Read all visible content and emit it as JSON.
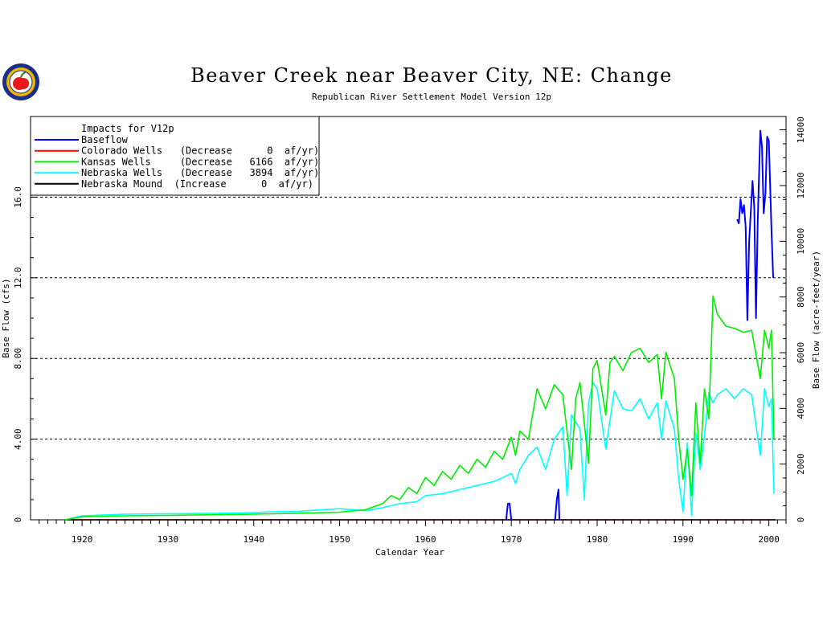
{
  "chart_data": {
    "type": "line",
    "title": "Beaver Creek near Beaver City, NE: Change",
    "subtitle": "Republican River Settlement Model Version 12p",
    "xlabel": "Calendar Year",
    "ylabel": "Base Flow (cfs)",
    "ylabel_right": "Base Flow (acre-feet/year)",
    "xlim": [
      1914,
      2002
    ],
    "ylim": [
      0,
      20
    ],
    "ylim_right": [
      0,
      14480
    ],
    "x_ticks": [
      1920,
      1930,
      1940,
      1950,
      1960,
      1970,
      1980,
      1990,
      2000
    ],
    "y_ticks": [
      0,
      4,
      8,
      12,
      16
    ],
    "y_tick_labels": [
      "0",
      "4.00",
      "8.00",
      "12.0",
      "16.0"
    ],
    "y_ticks_right": [
      0,
      2000,
      4000,
      6000,
      8000,
      10000,
      12000,
      14000
    ],
    "gridlines": "horizontal dashed at left y ticks",
    "legend": {
      "placement": "top-left",
      "header": "Impacts for V12p",
      "entries": [
        {
          "label": "Baseflow",
          "color": "#0000ff"
        },
        {
          "label": "Colorado Wells   (Decrease      0  af/yr)",
          "color": "#ff0000"
        },
        {
          "label": "Kansas Wells     (Decrease   6166  af/yr)",
          "color": "#00ee00"
        },
        {
          "label": "Nebraska Wells   (Decrease   3894  af/yr)",
          "color": "#00ffff"
        },
        {
          "label": "Nebraska Mound  (Increase      0  af/yr)",
          "color": "#000000"
        }
      ]
    },
    "series": [
      {
        "name": "Baseflow",
        "color": "#0000ff",
        "segments": [
          [
            [
              1969.4,
              0.0
            ],
            [
              1969.6,
              0.8
            ],
            [
              1969.8,
              0.8
            ],
            [
              1970.0,
              0.0
            ]
          ],
          [
            [
              1975.1,
              0.0
            ],
            [
              1975.3,
              1.0
            ],
            [
              1975.5,
              1.5
            ],
            [
              1975.6,
              0.0
            ]
          ],
          [
            [
              1996.3,
              14.9
            ],
            [
              1996.5,
              14.7
            ],
            [
              1996.7,
              15.9
            ],
            [
              1996.9,
              15.2
            ],
            [
              1997.1,
              15.6
            ],
            [
              1997.3,
              14.5
            ],
            [
              1997.5,
              9.9
            ],
            [
              1997.7,
              13.8
            ],
            [
              1997.9,
              15.3
            ],
            [
              1998.1,
              16.8
            ],
            [
              1998.3,
              15.5
            ],
            [
              1998.5,
              10.0
            ],
            [
              1998.7,
              14.8
            ],
            [
              1999.0,
              19.3
            ],
            [
              1999.2,
              18.5
            ],
            [
              1999.4,
              15.2
            ],
            [
              1999.6,
              16.2
            ],
            [
              1999.8,
              19.0
            ],
            [
              2000.0,
              18.8
            ],
            [
              2000.3,
              14.5
            ],
            [
              2000.5,
              12.0
            ]
          ]
        ]
      },
      {
        "name": "Colorado Wells",
        "color": "#ff0000",
        "segments": [
          [
            [
              1918.0,
              0.0
            ],
            [
              2000.8,
              0.0
            ]
          ]
        ]
      },
      {
        "name": "Kansas Wells",
        "color": "#00ee00",
        "segments": [
          [
            [
              1918.0,
              0.0
            ],
            [
              1920.0,
              0.15
            ],
            [
              1925.0,
              0.2
            ],
            [
              1930.0,
              0.22
            ],
            [
              1935.0,
              0.25
            ],
            [
              1940.0,
              0.28
            ],
            [
              1945.0,
              0.32
            ],
            [
              1950.0,
              0.38
            ],
            [
              1953.0,
              0.5
            ],
            [
              1955.0,
              0.8
            ],
            [
              1956.0,
              1.2
            ],
            [
              1957.0,
              1.0
            ],
            [
              1958.0,
              1.6
            ],
            [
              1959.0,
              1.3
            ],
            [
              1960.0,
              2.1
            ],
            [
              1961.0,
              1.7
            ],
            [
              1962.0,
              2.4
            ],
            [
              1963.0,
              2.0
            ],
            [
              1964.0,
              2.7
            ],
            [
              1965.0,
              2.3
            ],
            [
              1966.0,
              3.0
            ],
            [
              1967.0,
              2.6
            ],
            [
              1968.0,
              3.4
            ],
            [
              1969.0,
              3.0
            ],
            [
              1970.0,
              4.1
            ],
            [
              1970.5,
              3.2
            ],
            [
              1971.0,
              4.4
            ],
            [
              1972.0,
              4.0
            ],
            [
              1973.0,
              6.5
            ],
            [
              1974.0,
              5.5
            ],
            [
              1975.0,
              6.7
            ],
            [
              1976.0,
              6.2
            ],
            [
              1977.0,
              2.5
            ],
            [
              1977.5,
              6.0
            ],
            [
              1978.0,
              6.8
            ],
            [
              1979.0,
              2.8
            ],
            [
              1979.5,
              7.5
            ],
            [
              1980.0,
              7.9
            ],
            [
              1981.0,
              5.2
            ],
            [
              1981.5,
              7.8
            ],
            [
              1982.0,
              8.1
            ],
            [
              1983.0,
              7.4
            ],
            [
              1984.0,
              8.3
            ],
            [
              1985.0,
              8.5
            ],
            [
              1986.0,
              7.8
            ],
            [
              1987.0,
              8.2
            ],
            [
              1987.5,
              6.0
            ],
            [
              1988.0,
              8.3
            ],
            [
              1989.0,
              7.0
            ],
            [
              1989.5,
              4.0
            ],
            [
              1990.0,
              2.0
            ],
            [
              1990.5,
              3.5
            ],
            [
              1991.0,
              1.2
            ],
            [
              1991.5,
              5.8
            ],
            [
              1992.0,
              2.8
            ],
            [
              1992.5,
              6.5
            ],
            [
              1993.0,
              5.0
            ],
            [
              1993.5,
              11.1
            ],
            [
              1994.0,
              10.2
            ],
            [
              1995.0,
              9.6
            ],
            [
              1996.0,
              9.5
            ],
            [
              1997.0,
              9.3
            ],
            [
              1998.0,
              9.4
            ],
            [
              1999.0,
              7.0
            ],
            [
              1999.5,
              9.4
            ],
            [
              2000.0,
              8.5
            ],
            [
              2000.3,
              9.4
            ],
            [
              2000.6,
              4.0
            ]
          ]
        ]
      },
      {
        "name": "Nebraska Wells",
        "color": "#00ffff",
        "segments": [
          [
            [
              1918.0,
              0.0
            ],
            [
              1920.0,
              0.2
            ],
            [
              1925.0,
              0.28
            ],
            [
              1930.0,
              0.3
            ],
            [
              1935.0,
              0.32
            ],
            [
              1940.0,
              0.35
            ],
            [
              1942.0,
              0.4
            ],
            [
              1945.0,
              0.42
            ],
            [
              1950.0,
              0.55
            ],
            [
              1953.0,
              0.45
            ],
            [
              1955.0,
              0.6
            ],
            [
              1957.0,
              0.8
            ],
            [
              1959.0,
              0.9
            ],
            [
              1960.0,
              1.2
            ],
            [
              1962.0,
              1.3
            ],
            [
              1964.0,
              1.5
            ],
            [
              1966.0,
              1.7
            ],
            [
              1968.0,
              1.9
            ],
            [
              1970.0,
              2.3
            ],
            [
              1970.5,
              1.8
            ],
            [
              1971.0,
              2.5
            ],
            [
              1972.0,
              3.2
            ],
            [
              1973.0,
              3.6
            ],
            [
              1974.0,
              2.5
            ],
            [
              1975.0,
              4.0
            ],
            [
              1976.0,
              4.6
            ],
            [
              1976.5,
              1.2
            ],
            [
              1977.0,
              5.2
            ],
            [
              1978.0,
              4.5
            ],
            [
              1978.5,
              1.0
            ],
            [
              1979.0,
              5.8
            ],
            [
              1979.5,
              6.8
            ],
            [
              1980.0,
              6.5
            ],
            [
              1981.0,
              3.5
            ],
            [
              1982.0,
              6.4
            ],
            [
              1983.0,
              5.5
            ],
            [
              1984.0,
              5.4
            ],
            [
              1985.0,
              6.0
            ],
            [
              1986.0,
              5.0
            ],
            [
              1987.0,
              5.8
            ],
            [
              1987.5,
              4.0
            ],
            [
              1988.0,
              5.9
            ],
            [
              1989.0,
              4.5
            ],
            [
              1989.5,
              2.0
            ],
            [
              1990.0,
              0.4
            ],
            [
              1990.5,
              3.8
            ],
            [
              1991.0,
              0.2
            ],
            [
              1991.5,
              4.3
            ],
            [
              1992.0,
              2.5
            ],
            [
              1992.5,
              4.2
            ],
            [
              1993.0,
              6.3
            ],
            [
              1993.5,
              5.8
            ],
            [
              1994.0,
              6.2
            ],
            [
              1995.0,
              6.5
            ],
            [
              1996.0,
              6.0
            ],
            [
              1997.0,
              6.5
            ],
            [
              1998.0,
              6.2
            ],
            [
              1999.0,
              3.2
            ],
            [
              1999.5,
              6.5
            ],
            [
              2000.0,
              5.6
            ],
            [
              2000.3,
              6.0
            ],
            [
              2000.6,
              1.3
            ]
          ]
        ]
      },
      {
        "name": "Nebraska Mound",
        "color": "#000000",
        "segments": [
          [
            [
              1918.0,
              0.0
            ],
            [
              2000.8,
              0.0
            ]
          ]
        ]
      }
    ]
  },
  "logo": {
    "name": "apple-seal-logo",
    "ring_color": "#1a2f8a",
    "fill_color": "#f2b800",
    "apple_color": "#e81a1a"
  }
}
